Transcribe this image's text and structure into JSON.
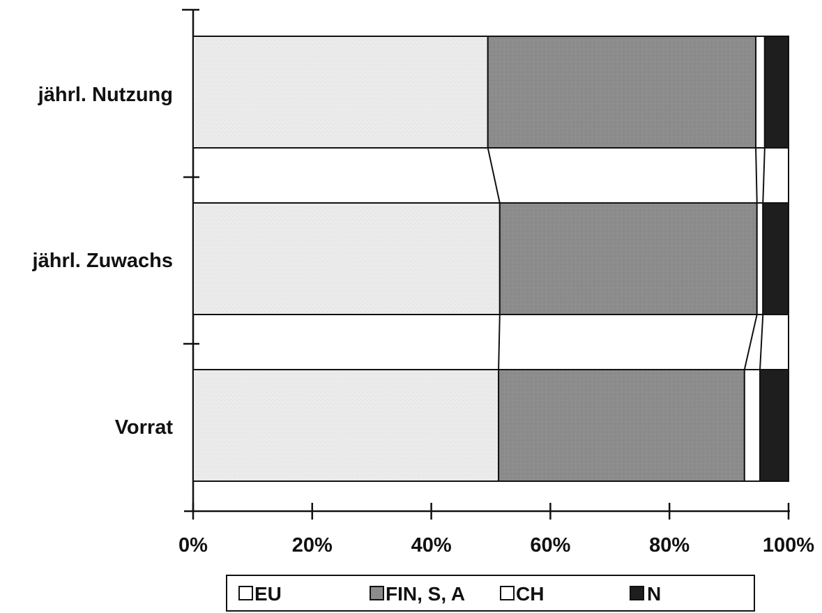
{
  "chart_data": {
    "type": "bar",
    "orientation": "horizontal",
    "stacked": true,
    "percent_stacked": true,
    "categories": [
      "jährl. Nutzung",
      "jährl. Zuwachs",
      "Vorrat"
    ],
    "series": [
      {
        "name": "EU",
        "values": [
          49.5,
          51.5,
          51.3
        ],
        "color": "#ebebeb"
      },
      {
        "name": "FIN, S, A",
        "values": [
          45.0,
          43.2,
          41.3
        ],
        "color": "#8c8c8c"
      },
      {
        "name": "CH",
        "values": [
          1.5,
          1.0,
          2.6
        ],
        "color": "#ffffff"
      },
      {
        "name": "N",
        "values": [
          4.0,
          4.3,
          4.8
        ],
        "color": "#1e1e1e"
      }
    ],
    "xticks": [
      "0%",
      "20%",
      "40%",
      "60%",
      "80%",
      "100%"
    ],
    "xlim": [
      0,
      100
    ],
    "series_lines": true,
    "grid": false,
    "legend": {
      "position": "bottom",
      "frame": true
    },
    "title": "",
    "xlabel": "",
    "ylabel": ""
  }
}
